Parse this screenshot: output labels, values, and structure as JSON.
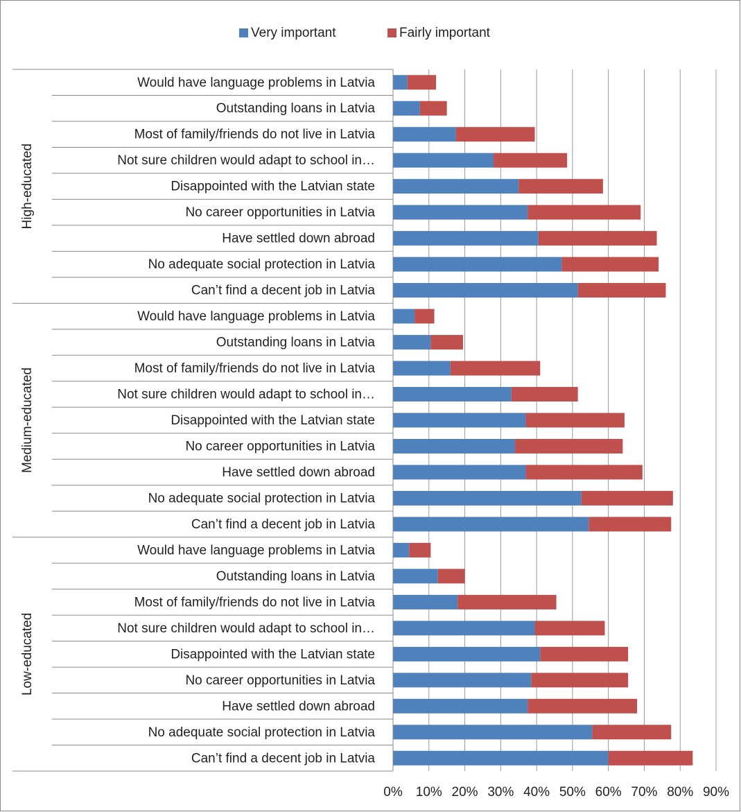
{
  "chart_data": {
    "type": "bar",
    "orientation": "horizontal",
    "stacked": true,
    "legend": "top",
    "grid": true,
    "xlim": [
      0,
      90
    ],
    "xticks": [
      {
        "value": 0,
        "label": "0%"
      },
      {
        "value": 10,
        "label": "10%"
      },
      {
        "value": 20,
        "label": "20%"
      },
      {
        "value": 30,
        "label": "30%"
      },
      {
        "value": 40,
        "label": "40%"
      },
      {
        "value": 50,
        "label": "50%"
      },
      {
        "value": 60,
        "label": "60%"
      },
      {
        "value": 70,
        "label": "70%"
      },
      {
        "value": 80,
        "label": "80%"
      },
      {
        "value": 90,
        "label": "90%"
      }
    ],
    "series": [
      {
        "name": "Very important",
        "color": "#4f81bd"
      },
      {
        "name": "Fairly important",
        "color": "#c0504d"
      }
    ],
    "groups": [
      {
        "name": "High-educated",
        "categories": [
          "Would have language problems in Latvia",
          "Outstanding loans in Latvia",
          "Most of family/friends do not live in Latvia",
          "Not sure children would adapt to school in…",
          "Disappointed with the Latvian state",
          "No career opportunities in Latvia",
          "Have settled down abroad",
          "No adequate social protection in Latvia",
          "Can’t find a decent job in Latvia"
        ],
        "series": [
          {
            "values": [
              4,
              7.5,
              17.5,
              28,
              35,
              37.5,
              40.5,
              47,
              51.5
            ]
          },
          {
            "values": [
              8,
              7.5,
              22,
              20.5,
              23.5,
              31.5,
              33,
              27,
              24.5
            ]
          }
        ]
      },
      {
        "name": "Medium-educated",
        "categories": [
          "Would have language problems in Latvia",
          "Outstanding loans in Latvia",
          "Most of family/friends do not live in Latvia",
          "Not sure children would adapt to school in…",
          "Disappointed with the Latvian state",
          "No career opportunities in Latvia",
          "Have settled down abroad",
          "No adequate social protection in Latvia",
          "Can’t find a decent job in Latvia"
        ],
        "series": [
          {
            "values": [
              6,
              10.5,
              16,
              33,
              37,
              34,
              37,
              52.5,
              54.5
            ]
          },
          {
            "values": [
              5.5,
              9,
              25,
              18.5,
              27.5,
              30,
              32.5,
              25.5,
              23
            ]
          }
        ]
      },
      {
        "name": "Low-educated",
        "categories": [
          "Would have language problems in Latvia",
          "Outstanding loans in Latvia",
          "Most of family/friends do not live in Latvia",
          "Not sure children would adapt to school in…",
          "Disappointed with the Latvian state",
          "No career opportunities in Latvia",
          "Have settled down abroad",
          "No adequate social protection in Latvia",
          "Can’t find a decent job in Latvia"
        ],
        "series": [
          {
            "values": [
              4.5,
              12.5,
              18,
              39.5,
              41,
              38.5,
              37.5,
              55.5,
              60
            ]
          },
          {
            "values": [
              6,
              7.5,
              27.5,
              19.5,
              24.5,
              27,
              30.5,
              22,
              23.5
            ]
          }
        ]
      }
    ]
  }
}
